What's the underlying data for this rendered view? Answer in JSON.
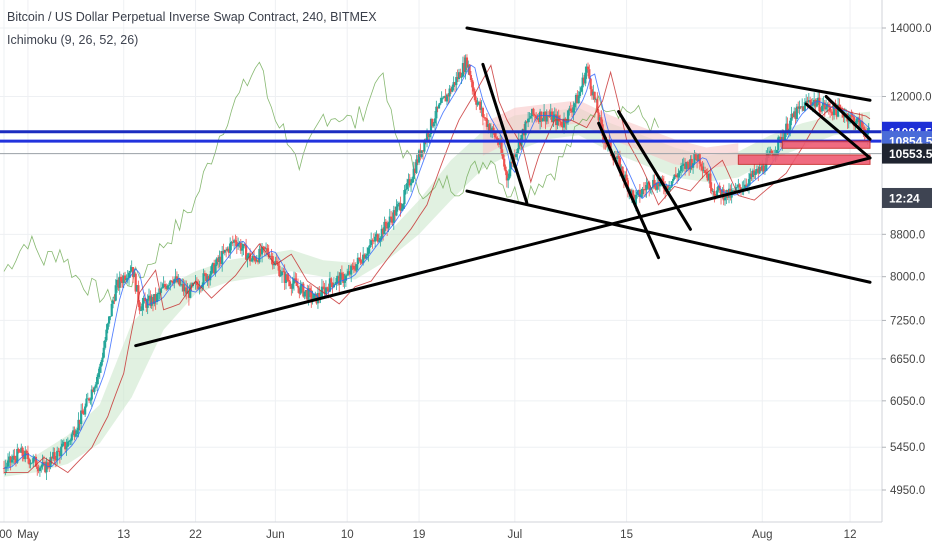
{
  "header": {
    "title": "Bitcoin / US Dollar Perpetual Inverse Swap Contract, 240, BITMEX",
    "indicator": "Ichimoku (9, 26, 52, 26)"
  },
  "chart_data": {
    "type": "line",
    "title": "Bitcoin / US Dollar Perpetual Inverse Swap Contract, 240, BITMEX",
    "scale": "log",
    "grid": true,
    "ylim": [
      4700,
      15000
    ],
    "y_ticks": [
      {
        "label": "14000.0",
        "value": 14000
      },
      {
        "label": "12000.0",
        "value": 12000
      },
      {
        "label": "8800.0",
        "value": 8800
      },
      {
        "label": "8000.0",
        "value": 8000
      },
      {
        "label": "7250.0",
        "value": 7250
      },
      {
        "label": "6650.0",
        "value": 6650
      },
      {
        "label": "6050.0",
        "value": 6050
      },
      {
        "label": "5450.0",
        "value": 5450
      },
      {
        "label": "4950.0",
        "value": 4950
      }
    ],
    "x_ticks": [
      ":00",
      "May",
      "13",
      "22",
      "Jun",
      "10",
      "19",
      "Jul",
      "15",
      "Aug",
      "12"
    ],
    "x_labels": [
      {
        "label": ":00",
        "day": -2
      },
      {
        "label": "May",
        "day": 1
      },
      {
        "label": "13",
        "day": 13
      },
      {
        "label": "22",
        "day": 22
      },
      {
        "label": "Jun",
        "day": 32
      },
      {
        "label": "10",
        "day": 41
      },
      {
        "label": "19",
        "day": 50
      },
      {
        "label": "Jul",
        "day": 62
      },
      {
        "label": "15",
        "day": 76
      },
      {
        "label": "Aug",
        "day": 93
      },
      {
        "label": "12",
        "day": 104
      }
    ],
    "x_range_days": [
      -2.5,
      108
    ],
    "price_path": [
      [
        -2,
        5200
      ],
      [
        0,
        5380
      ],
      [
        3,
        5200
      ],
      [
        6,
        5500
      ],
      [
        8,
        5900
      ],
      [
        10,
        6500
      ],
      [
        12,
        7800
      ],
      [
        14,
        8200
      ],
      [
        15,
        7500
      ],
      [
        17,
        7600
      ],
      [
        19,
        8000
      ],
      [
        21,
        7700
      ],
      [
        24,
        8100
      ],
      [
        27,
        8700
      ],
      [
        29,
        8300
      ],
      [
        31,
        8500
      ],
      [
        33,
        8000
      ],
      [
        35,
        7800
      ],
      [
        37,
        7600
      ],
      [
        39,
        7900
      ],
      [
        41,
        8000
      ],
      [
        44,
        8600
      ],
      [
        46,
        9000
      ],
      [
        48,
        9500
      ],
      [
        50,
        10500
      ],
      [
        52,
        11500
      ],
      [
        54,
        12200
      ],
      [
        56,
        13000
      ],
      [
        57,
        12000
      ],
      [
        58,
        11500
      ],
      [
        60,
        10800
      ],
      [
        61,
        10000
      ],
      [
        62,
        10600
      ],
      [
        64,
        11500
      ],
      [
        66,
        11500
      ],
      [
        68,
        11300
      ],
      [
        70,
        12000
      ],
      [
        71,
        12800
      ],
      [
        73,
        11000
      ],
      [
        75,
        10300
      ],
      [
        77,
        9500
      ],
      [
        79,
        9900
      ],
      [
        81,
        9800
      ],
      [
        83,
        10200
      ],
      [
        85,
        10500
      ],
      [
        87,
        9700
      ],
      [
        89,
        9600
      ],
      [
        91,
        9900
      ],
      [
        93,
        10200
      ],
      [
        95,
        10800
      ],
      [
        97,
        11500
      ],
      [
        99,
        11900
      ],
      [
        101,
        11700
      ],
      [
        103,
        11600
      ],
      [
        105,
        11300
      ],
      [
        106.5,
        11000
      ]
    ],
    "kumo_path": [
      [
        -2,
        5100,
        5300
      ],
      [
        2,
        5150,
        5350
      ],
      [
        6,
        5250,
        5600
      ],
      [
        10,
        5500,
        6000
      ],
      [
        14,
        6100,
        7200
      ],
      [
        18,
        7100,
        7800
      ],
      [
        22,
        7700,
        8100
      ],
      [
        26,
        7900,
        8300
      ],
      [
        30,
        8000,
        8400
      ],
      [
        34,
        8100,
        8500
      ],
      [
        38,
        8000,
        8300
      ],
      [
        42,
        7950,
        8250
      ],
      [
        46,
        8300,
        8800
      ],
      [
        50,
        8800,
        9500
      ],
      [
        54,
        9500,
        10400
      ],
      [
        58,
        10200,
        11100
      ],
      [
        62,
        10600,
        11500
      ],
      [
        66,
        10900,
        11600
      ],
      [
        70,
        11000,
        11700
      ],
      [
        74,
        10600,
        11300
      ],
      [
        78,
        10300,
        11000
      ],
      [
        82,
        10000,
        10700
      ],
      [
        86,
        9900,
        10500
      ],
      [
        90,
        10000,
        10600
      ],
      [
        94,
        10400,
        11000
      ],
      [
        98,
        10700,
        11300
      ],
      [
        102,
        11000,
        11500
      ],
      [
        106.5,
        11100,
        11600
      ]
    ],
    "trendlines": [
      {
        "name": "upper-resistance",
        "points": [
          [
            56,
            14000
          ],
          [
            106.5,
            11900
          ]
        ]
      },
      {
        "name": "lower-channel",
        "points": [
          [
            56,
            9700
          ],
          [
            106.5,
            7900
          ]
        ]
      },
      {
        "name": "rising-support",
        "points": [
          [
            14.5,
            6850
          ],
          [
            106.5,
            10450
          ]
        ]
      },
      {
        "name": "short-down-1",
        "points": [
          [
            58,
            12900
          ],
          [
            63.5,
            9450
          ]
        ]
      },
      {
        "name": "short-down-2",
        "points": [
          [
            72.5,
            11300
          ],
          [
            80,
            8350
          ]
        ]
      },
      {
        "name": "short-down-3",
        "points": [
          [
            75,
            11600
          ],
          [
            84,
            8900
          ]
        ]
      },
      {
        "name": "short-down-4",
        "points": [
          [
            98.5,
            11800
          ],
          [
            106.5,
            10450
          ]
        ]
      },
      {
        "name": "short-down-5",
        "points": [
          [
            101,
            12000
          ],
          [
            106.5,
            10900
          ]
        ]
      }
    ],
    "horizontal_lines": [
      {
        "name": "blue-level-1",
        "value": 11084.5,
        "color": "#1b2cc0"
      },
      {
        "name": "blue-level-2",
        "value": 10854.5,
        "color": "#2233dd"
      },
      {
        "name": "gray-level",
        "value": 10553.5,
        "color": "#9aa0a6"
      }
    ],
    "zones": [
      {
        "name": "supply-zone-upper",
        "from_day": 95.5,
        "to_day": 106.5,
        "low": 10680,
        "high": 10854.5,
        "color": "#ef5b73"
      },
      {
        "name": "supply-zone-lower",
        "from_day": 90,
        "to_day": 106.5,
        "low": 10300,
        "high": 10520,
        "color": "#ef5b73"
      }
    ],
    "price_tags": [
      {
        "label": "11084.5",
        "value": 11084.5,
        "color": "#1e2fd6"
      },
      {
        "label": "10854.5",
        "value": 10854.5,
        "color": "#4a6bd8"
      },
      {
        "label": "10553.5",
        "value": 10553.5,
        "color": "#1f2430"
      },
      {
        "label": "12:24",
        "value": 9550,
        "color": "#3e4452"
      }
    ],
    "colors": {
      "bull": "#26a69a",
      "bear": "#ef5350",
      "kumo_bull": "#c8e6c9",
      "kumo_bear": "#f8c8c8",
      "trend": "#000000",
      "grid": "#eef0f3"
    }
  }
}
